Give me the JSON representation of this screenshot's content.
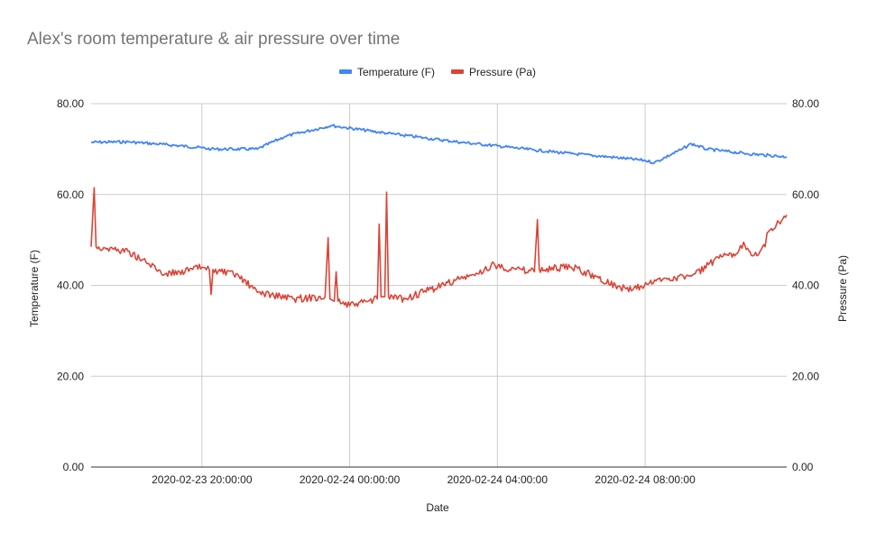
{
  "chart_data": {
    "type": "line",
    "title": "Alex's room temperature & air pressure over time",
    "xlabel": "Date",
    "ylabel_left": "Temperature (F)",
    "ylabel_right": "Pressure (Pa)",
    "ylim": [
      0,
      80
    ],
    "yticks": [
      "0.00",
      "20.00",
      "40.00",
      "60.00",
      "80.00"
    ],
    "xlim": [
      "2020-02-23 17:00:00",
      "2020-02-24 11:50:00"
    ],
    "xticks": [
      {
        "value": "2020-02-23 20:00:00",
        "label": "2020-02-23 20:00:00"
      },
      {
        "value": "2020-02-24 00:00:00",
        "label": "2020-02-24 00:00:00"
      },
      {
        "value": "2020-02-24 04:00:00",
        "label": "2020-02-24 04:00:00"
      },
      {
        "value": "2020-02-24 08:00:00",
        "label": "2020-02-24 08:00:00"
      }
    ],
    "legend_position": "top",
    "grid": true,
    "series": [
      {
        "name": "Temperature (F)",
        "color": "#4285f4",
        "axis": "left",
        "points": [
          [
            "2020-02-23 17:00:00",
            71.5
          ],
          [
            "2020-02-23 18:00:00",
            71.6
          ],
          [
            "2020-02-23 19:00:00",
            71.0
          ],
          [
            "2020-02-23 20:00:00",
            70.3
          ],
          [
            "2020-02-23 20:15:00",
            70.0
          ],
          [
            "2020-02-23 21:30:00",
            70.0
          ],
          [
            "2020-02-23 22:15:00",
            72.8
          ],
          [
            "2020-02-23 23:30:00",
            75.2
          ],
          [
            "2020-02-23 23:50:00",
            74.8
          ],
          [
            "2020-02-24 01:00:00",
            73.5
          ],
          [
            "2020-02-24 02:00:00",
            72.5
          ],
          [
            "2020-02-24 03:00:00",
            71.5
          ],
          [
            "2020-02-24 04:00:00",
            70.7
          ],
          [
            "2020-02-24 05:00:00",
            69.8
          ],
          [
            "2020-02-24 06:00:00",
            69.0
          ],
          [
            "2020-02-24 07:00:00",
            68.3
          ],
          [
            "2020-02-24 08:00:00",
            67.5
          ],
          [
            "2020-02-24 08:15:00",
            67.0
          ],
          [
            "2020-02-24 09:00:00",
            70.0
          ],
          [
            "2020-02-24 09:15:00",
            71.2
          ],
          [
            "2020-02-24 09:40:00",
            70.0
          ],
          [
            "2020-02-24 10:45:00",
            69.0
          ],
          [
            "2020-02-24 11:50:00",
            68.3
          ]
        ]
      },
      {
        "name": "Pressure (Pa)",
        "color": "#db4437",
        "axis": "right",
        "points": [
          [
            "2020-02-23 17:00:00",
            48.5
          ],
          [
            "2020-02-23 17:05:00",
            61.5
          ],
          [
            "2020-02-23 17:08:00",
            48.5
          ],
          [
            "2020-02-23 18:00:00",
            47.5
          ],
          [
            "2020-02-23 19:00:00",
            42.5
          ],
          [
            "2020-02-23 19:45:00",
            43.5
          ],
          [
            "2020-02-23 20:00:00",
            44.0
          ],
          [
            "2020-02-23 20:12:00",
            43.5
          ],
          [
            "2020-02-23 20:15:00",
            38.0
          ],
          [
            "2020-02-23 20:18:00",
            43.5
          ],
          [
            "2020-02-23 21:00:00",
            42.0
          ],
          [
            "2020-02-23 21:30:00",
            38.5
          ],
          [
            "2020-02-23 22:30:00",
            37.0
          ],
          [
            "2020-02-23 23:20:00",
            37.5
          ],
          [
            "2020-02-23 23:25:00",
            50.5
          ],
          [
            "2020-02-23 23:28:00",
            37.0
          ],
          [
            "2020-02-23 23:35:00",
            36.5
          ],
          [
            "2020-02-23 23:38:00",
            43.0
          ],
          [
            "2020-02-23 23:41:00",
            36.5
          ],
          [
            "2020-02-24 00:00:00",
            35.5
          ],
          [
            "2020-02-24 00:30:00",
            36.5
          ],
          [
            "2020-02-24 00:45:00",
            37.0
          ],
          [
            "2020-02-24 00:48:00",
            53.5
          ],
          [
            "2020-02-24 00:51:00",
            37.5
          ],
          [
            "2020-02-24 00:57:00",
            37.5
          ],
          [
            "2020-02-24 01:00:00",
            60.5
          ],
          [
            "2020-02-24 01:03:00",
            37.5
          ],
          [
            "2020-02-24 01:30:00",
            37.0
          ],
          [
            "2020-02-24 02:00:00",
            38.5
          ],
          [
            "2020-02-24 03:00:00",
            41.5
          ],
          [
            "2020-02-24 03:30:00",
            42.5
          ],
          [
            "2020-02-24 03:50:00",
            44.5
          ],
          [
            "2020-02-24 04:30:00",
            43.5
          ],
          [
            "2020-02-24 05:00:00",
            43.0
          ],
          [
            "2020-02-24 05:05:00",
            54.5
          ],
          [
            "2020-02-24 05:08:00",
            43.5
          ],
          [
            "2020-02-24 06:00:00",
            44.0
          ],
          [
            "2020-02-24 06:30:00",
            42.5
          ],
          [
            "2020-02-24 07:20:00",
            39.5
          ],
          [
            "2020-02-24 07:40:00",
            39.0
          ],
          [
            "2020-02-24 08:30:00",
            41.5
          ],
          [
            "2020-02-24 09:15:00",
            42.0
          ],
          [
            "2020-02-24 10:00:00",
            46.0
          ],
          [
            "2020-02-24 10:30:00",
            47.0
          ],
          [
            "2020-02-24 10:40:00",
            49.5
          ],
          [
            "2020-02-24 10:55:00",
            46.5
          ],
          [
            "2020-02-24 11:15:00",
            48.5
          ],
          [
            "2020-02-24 11:18:00",
            51.5
          ],
          [
            "2020-02-24 11:25:00",
            52.5
          ],
          [
            "2020-02-24 11:50:00",
            55.5
          ]
        ]
      }
    ]
  }
}
